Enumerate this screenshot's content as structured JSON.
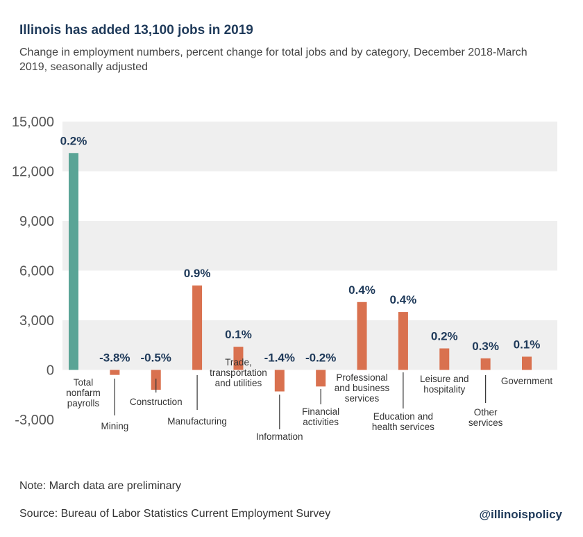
{
  "title": "Illinois has added 13,100 jobs in 2019",
  "subtitle": "Change in employment numbers, percent change for total jobs and by category, December 2018-March 2019, seasonally adjusted",
  "note": "Note: March data are preliminary",
  "source": "Source: Bureau of Labor Statistics Current Employment Survey",
  "handle": "@illinoispolicy",
  "colors": {
    "total": "#5aa496",
    "category": "#d9714f",
    "band": "#efefef",
    "title": "#1f3a5a",
    "axis_text": "#555555"
  },
  "chart_data": {
    "type": "bar",
    "ylim": [
      -3000,
      15000
    ],
    "yticks": [
      "15,000",
      "12,000",
      "9,000",
      "6,000",
      "3,000",
      "0",
      "-3,000"
    ],
    "ytick_values": [
      15000,
      12000,
      9000,
      6000,
      3000,
      0,
      -3000
    ],
    "grid": "alternating bands",
    "categories": [
      {
        "label": [
          "Total",
          "nonfarm",
          "payrolls"
        ],
        "value": 13100,
        "pct": "0.2%",
        "total": true
      },
      {
        "label": [
          "Mining"
        ],
        "value": -300,
        "pct": "-3.8%"
      },
      {
        "label": [
          "Construction"
        ],
        "value": -1200,
        "pct": "-0.5%"
      },
      {
        "label": [
          "Manufacturing"
        ],
        "value": 5100,
        "pct": "0.9%"
      },
      {
        "label": [
          "Trade,",
          "transportation",
          "and utilities"
        ],
        "value": 1400,
        "pct": "0.1%"
      },
      {
        "label": [
          "Information"
        ],
        "value": -1300,
        "pct": "-1.4%"
      },
      {
        "label": [
          "Financial",
          "activities"
        ],
        "value": -1000,
        "pct": "-0.2%"
      },
      {
        "label": [
          "Professional",
          "and business",
          "services"
        ],
        "value": 4100,
        "pct": "0.4%"
      },
      {
        "label": [
          "Education and",
          "health services"
        ],
        "value": 3500,
        "pct": "0.4%"
      },
      {
        "label": [
          "Leisure and",
          "hospitality"
        ],
        "value": 1300,
        "pct": "0.2%"
      },
      {
        "label": [
          "Other",
          "services"
        ],
        "value": 700,
        "pct": "0.3%"
      },
      {
        "label": [
          "Government"
        ],
        "value": 800,
        "pct": "0.1%"
      }
    ]
  }
}
